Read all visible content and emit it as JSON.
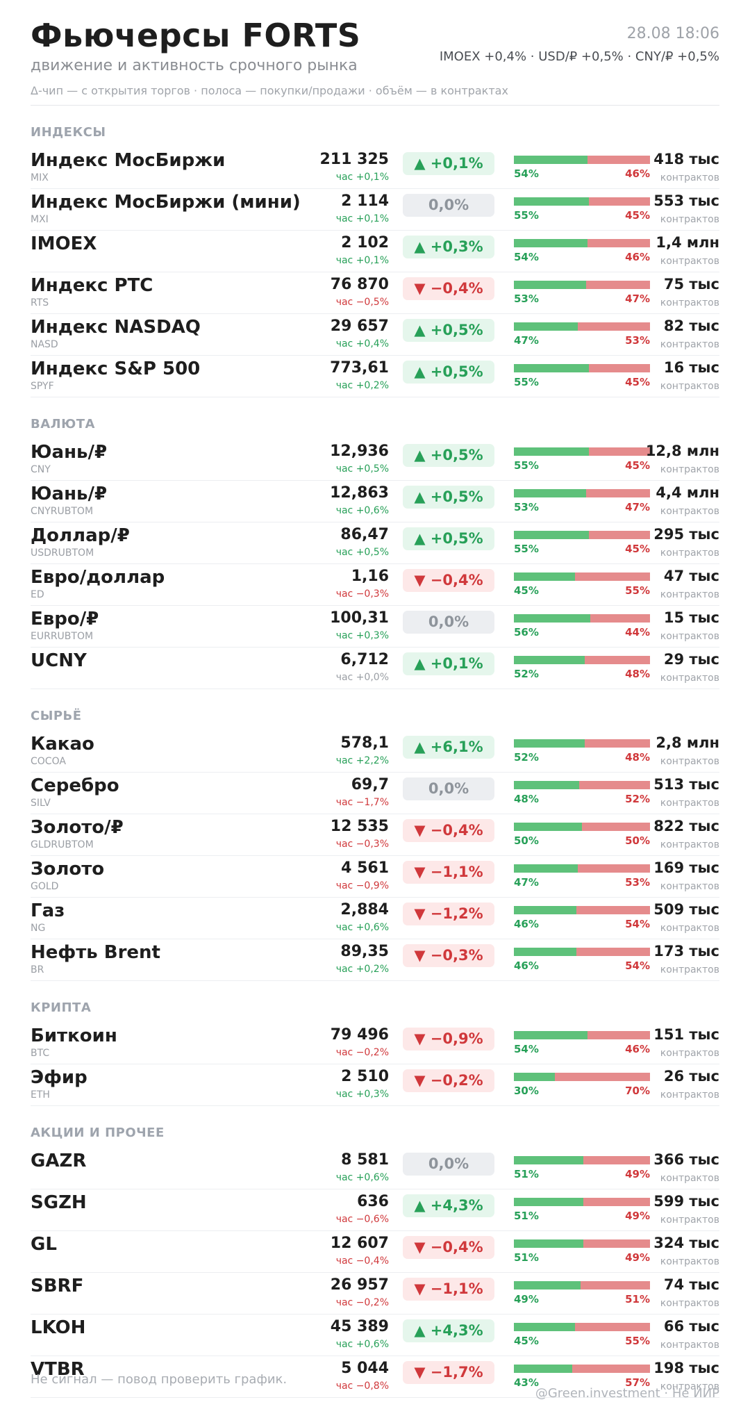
{
  "header": {
    "title": "Фьючерсы FORTS",
    "subtitle": "движение и активность срочного рынка",
    "legend": "Δ-чип — с открытия торгов  ·  полоса — покупки/продажи  ·  объём — в контрактах",
    "datetime": "28.08 18:06",
    "ticker": "IMOEX +0,4%  ·  USD/₽ +0,5%  ·  CNY/₽ +0,5%"
  },
  "volume_unit": "контрактов",
  "colors": {
    "up": "#27a058",
    "down": "#d0383b",
    "buy_bar": "#5ec17a",
    "sell_bar": "#e58b8c"
  },
  "sections": [
    {
      "title": "ИНДЕКСЫ",
      "rows": [
        {
          "name": "Индекс МосБиржи",
          "code": "MIX",
          "price": "211 325",
          "hour": "час +0,1%",
          "hour_dir": "up",
          "chip": "▲ +0,1%",
          "chip_dir": "up",
          "buy": 54,
          "sell": 46,
          "buy_label": "54%",
          "sell_label": "46%",
          "volume": "418 тыс"
        },
        {
          "name": "Индекс МосБиржи (мини)",
          "code": "MXI",
          "price": "2 114",
          "hour": "час +0,1%",
          "hour_dir": "up",
          "chip": "0,0%",
          "chip_dir": "flat",
          "buy": 55,
          "sell": 45,
          "buy_label": "55%",
          "sell_label": "45%",
          "volume": "553 тыс"
        },
        {
          "name": "IMOEX",
          "code": "",
          "price": "2 102",
          "hour": "час +0,1%",
          "hour_dir": "up",
          "chip": "▲ +0,3%",
          "chip_dir": "up",
          "buy": 54,
          "sell": 46,
          "buy_label": "54%",
          "sell_label": "46%",
          "volume": "1,4 млн"
        },
        {
          "name": "Индекс РТС",
          "code": "RTS",
          "price": "76 870",
          "hour": "час −0,5%",
          "hour_dir": "down",
          "chip": "▼ −0,4%",
          "chip_dir": "down",
          "buy": 53,
          "sell": 47,
          "buy_label": "53%",
          "sell_label": "47%",
          "volume": "75 тыс"
        },
        {
          "name": "Индекс NASDAQ",
          "code": "NASD",
          "price": "29 657",
          "hour": "час +0,4%",
          "hour_dir": "up",
          "chip": "▲ +0,5%",
          "chip_dir": "up",
          "buy": 47,
          "sell": 53,
          "buy_label": "47%",
          "sell_label": "53%",
          "volume": "82 тыс"
        },
        {
          "name": "Индекс S&P 500",
          "code": "SPYF",
          "price": "773,61",
          "hour": "час +0,2%",
          "hour_dir": "up",
          "chip": "▲ +0,5%",
          "chip_dir": "up",
          "buy": 55,
          "sell": 45,
          "buy_label": "55%",
          "sell_label": "45%",
          "volume": "16 тыс"
        }
      ]
    },
    {
      "title": "ВАЛЮТА",
      "rows": [
        {
          "name": "Юань/₽",
          "code": "CNY",
          "price": "12,936",
          "hour": "час +0,5%",
          "hour_dir": "up",
          "chip": "▲ +0,5%",
          "chip_dir": "up",
          "buy": 55,
          "sell": 45,
          "buy_label": "55%",
          "sell_label": "45%",
          "volume": "12,8 млн"
        },
        {
          "name": "Юань/₽",
          "code": "CNYRUBTOM",
          "price": "12,863",
          "hour": "час +0,6%",
          "hour_dir": "up",
          "chip": "▲ +0,5%",
          "chip_dir": "up",
          "buy": 53,
          "sell": 47,
          "buy_label": "53%",
          "sell_label": "47%",
          "volume": "4,4 млн"
        },
        {
          "name": "Доллар/₽",
          "code": "USDRUBTOM",
          "price": "86,47",
          "hour": "час +0,5%",
          "hour_dir": "up",
          "chip": "▲ +0,5%",
          "chip_dir": "up",
          "buy": 55,
          "sell": 45,
          "buy_label": "55%",
          "sell_label": "45%",
          "volume": "295 тыс"
        },
        {
          "name": "Евро/доллар",
          "code": "ED",
          "price": "1,16",
          "hour": "час −0,3%",
          "hour_dir": "down",
          "chip": "▼ −0,4%",
          "chip_dir": "down",
          "buy": 45,
          "sell": 55,
          "buy_label": "45%",
          "sell_label": "55%",
          "volume": "47 тыс"
        },
        {
          "name": "Евро/₽",
          "code": "EURRUBTOM",
          "price": "100,31",
          "hour": "час +0,3%",
          "hour_dir": "up",
          "chip": "0,0%",
          "chip_dir": "flat",
          "buy": 56,
          "sell": 44,
          "buy_label": "56%",
          "sell_label": "44%",
          "volume": "15 тыс"
        },
        {
          "name": "UCNY",
          "code": "",
          "price": "6,712",
          "hour": "час +0,0%",
          "hour_dir": "flat",
          "chip": "▲ +0,1%",
          "chip_dir": "up",
          "buy": 52,
          "sell": 48,
          "buy_label": "52%",
          "sell_label": "48%",
          "volume": "29 тыс"
        }
      ]
    },
    {
      "title": "СЫРЬЁ",
      "rows": [
        {
          "name": "Какао",
          "code": "COCOA",
          "price": "578,1",
          "hour": "час +2,2%",
          "hour_dir": "up",
          "chip": "▲ +6,1%",
          "chip_dir": "up",
          "buy": 52,
          "sell": 48,
          "buy_label": "52%",
          "sell_label": "48%",
          "volume": "2,8 млн"
        },
        {
          "name": "Серебро",
          "code": "SILV",
          "price": "69,7",
          "hour": "час −1,7%",
          "hour_dir": "down",
          "chip": "0,0%",
          "chip_dir": "flat",
          "buy": 48,
          "sell": 52,
          "buy_label": "48%",
          "sell_label": "52%",
          "volume": "513 тыс"
        },
        {
          "name": "Золото/₽",
          "code": "GLDRUBTOM",
          "price": "12 535",
          "hour": "час −0,3%",
          "hour_dir": "down",
          "chip": "▼ −0,4%",
          "chip_dir": "down",
          "buy": 50,
          "sell": 50,
          "buy_label": "50%",
          "sell_label": "50%",
          "volume": "822 тыс"
        },
        {
          "name": "Золото",
          "code": "GOLD",
          "price": "4 561",
          "hour": "час −0,9%",
          "hour_dir": "down",
          "chip": "▼ −1,1%",
          "chip_dir": "down",
          "buy": 47,
          "sell": 53,
          "buy_label": "47%",
          "sell_label": "53%",
          "volume": "169 тыс"
        },
        {
          "name": "Газ",
          "code": "NG",
          "price": "2,884",
          "hour": "час +0,6%",
          "hour_dir": "up",
          "chip": "▼ −1,2%",
          "chip_dir": "down",
          "buy": 46,
          "sell": 54,
          "buy_label": "46%",
          "sell_label": "54%",
          "volume": "509 тыс"
        },
        {
          "name": "Нефть Brent",
          "code": "BR",
          "price": "89,35",
          "hour": "час +0,2%",
          "hour_dir": "up",
          "chip": "▼ −0,3%",
          "chip_dir": "down",
          "buy": 46,
          "sell": 54,
          "buy_label": "46%",
          "sell_label": "54%",
          "volume": "173 тыс"
        }
      ]
    },
    {
      "title": "КРИПТА",
      "rows": [
        {
          "name": "Биткоин",
          "code": "BTC",
          "price": "79 496",
          "hour": "час −0,2%",
          "hour_dir": "down",
          "chip": "▼ −0,9%",
          "chip_dir": "down",
          "buy": 54,
          "sell": 46,
          "buy_label": "54%",
          "sell_label": "46%",
          "volume": "151 тыс"
        },
        {
          "name": "Эфир",
          "code": "ETH",
          "price": "2 510",
          "hour": "час +0,3%",
          "hour_dir": "up",
          "chip": "▼ −0,2%",
          "chip_dir": "down",
          "buy": 30,
          "sell": 70,
          "buy_label": "30%",
          "sell_label": "70%",
          "volume": "26 тыс"
        }
      ]
    },
    {
      "title": "АКЦИИ И ПРОЧЕЕ",
      "rows": [
        {
          "name": "GAZR",
          "code": "",
          "price": "8 581",
          "hour": "час +0,6%",
          "hour_dir": "up",
          "chip": "0,0%",
          "chip_dir": "flat",
          "buy": 51,
          "sell": 49,
          "buy_label": "51%",
          "sell_label": "49%",
          "volume": "366 тыс"
        },
        {
          "name": "SGZH",
          "code": "",
          "price": "636",
          "hour": "час −0,6%",
          "hour_dir": "down",
          "chip": "▲ +4,3%",
          "chip_dir": "up",
          "buy": 51,
          "sell": 49,
          "buy_label": "51%",
          "sell_label": "49%",
          "volume": "599 тыс"
        },
        {
          "name": "GL",
          "code": "",
          "price": "12 607",
          "hour": "час −0,4%",
          "hour_dir": "down",
          "chip": "▼ −0,4%",
          "chip_dir": "down",
          "buy": 51,
          "sell": 49,
          "buy_label": "51%",
          "sell_label": "49%",
          "volume": "324 тыс"
        },
        {
          "name": "SBRF",
          "code": "",
          "price": "26 957",
          "hour": "час −0,2%",
          "hour_dir": "down",
          "chip": "▼ −1,1%",
          "chip_dir": "down",
          "buy": 49,
          "sell": 51,
          "buy_label": "49%",
          "sell_label": "51%",
          "volume": "74 тыс"
        },
        {
          "name": "LKOH",
          "code": "",
          "price": "45 389",
          "hour": "час +0,6%",
          "hour_dir": "up",
          "chip": "▲ +4,3%",
          "chip_dir": "up",
          "buy": 45,
          "sell": 55,
          "buy_label": "45%",
          "sell_label": "55%",
          "volume": "66 тыс"
        },
        {
          "name": "VTBR",
          "code": "",
          "price": "5 044",
          "hour": "час −0,8%",
          "hour_dir": "down",
          "chip": "▼ −1,7%",
          "chip_dir": "down",
          "buy": 43,
          "sell": 57,
          "buy_label": "43%",
          "sell_label": "57%",
          "volume": "198 тыс"
        }
      ]
    }
  ],
  "footer": {
    "disclaimer": "Не сигнал — повод проверить график.",
    "source": "@Green.investment · Не ИИР"
  }
}
